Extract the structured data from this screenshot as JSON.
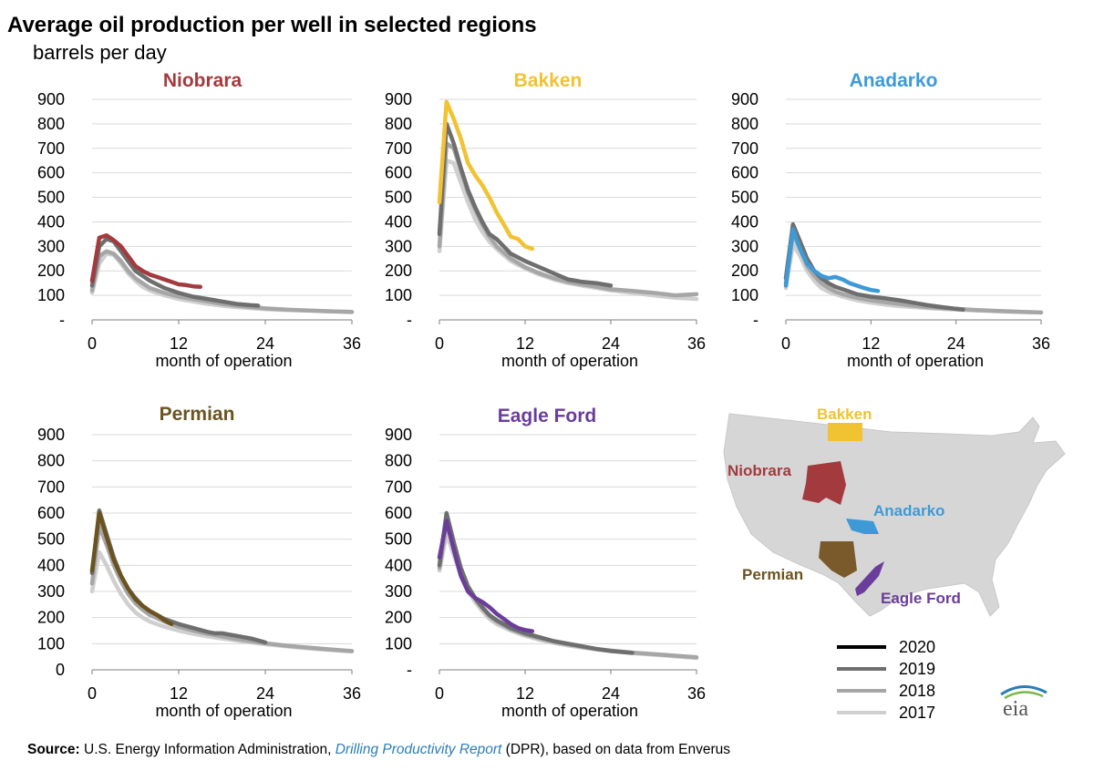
{
  "title": "Average oil production per well in selected regions",
  "subtitle": "barrels per day",
  "source": {
    "label": "Source:",
    "text_before": "U.S. Energy Information Administration,",
    "link": "Drilling Productivity Report",
    "text_after": "(DPR), based on data from Enverus"
  },
  "legend": [
    {
      "label": "2020",
      "color": "#000000"
    },
    {
      "label": "2019",
      "color": "#6e6e6e"
    },
    {
      "label": "2018",
      "color": "#a6a6a6"
    },
    {
      "label": "2017",
      "color": "#cfcfcf"
    }
  ],
  "map": {
    "labels": [
      {
        "text": "Bakken",
        "color": "#f1c232"
      },
      {
        "text": "Niobrara",
        "color": "#a33a3e"
      },
      {
        "text": "Anadarko",
        "color": "#3d9ad6"
      },
      {
        "text": "Permian",
        "color": "#6b5320"
      },
      {
        "text": "Eagle Ford",
        "color": "#6a3d9a"
      }
    ]
  },
  "logo_text": "eia",
  "chart_data": [
    {
      "type": "line",
      "title": "Niobrara",
      "title_color": "#a33a3e",
      "xlabel": "month of operation",
      "ylabel": "",
      "xticks": [
        "0",
        "12",
        "24",
        "36"
      ],
      "yticks": [
        "-",
        "100",
        "200",
        "300",
        "400",
        "500",
        "600",
        "700",
        "800",
        "900"
      ],
      "xlim": [
        0,
        36
      ],
      "ylim": [
        0,
        900
      ],
      "series": [
        {
          "name": "2017",
          "color": "#cfcfcf",
          "x": [
            0,
            1,
            2,
            3,
            4,
            5,
            6,
            7,
            8,
            10,
            12,
            14,
            16,
            18,
            20,
            22,
            24,
            27,
            30,
            33,
            36
          ],
          "values": [
            110,
            230,
            270,
            265,
            230,
            190,
            160,
            135,
            120,
            100,
            85,
            75,
            65,
            58,
            52,
            48,
            44,
            40,
            38,
            35,
            33
          ]
        },
        {
          "name": "2018",
          "color": "#a6a6a6",
          "x": [
            0,
            1,
            2,
            3,
            4,
            5,
            6,
            7,
            8,
            10,
            12,
            14,
            16,
            18,
            20,
            22,
            24,
            27,
            30,
            33,
            36
          ],
          "values": [
            120,
            260,
            280,
            270,
            240,
            200,
            170,
            150,
            130,
            110,
            95,
            85,
            75,
            65,
            58,
            52,
            47,
            42,
            38,
            35,
            32
          ]
        },
        {
          "name": "2019",
          "color": "#6e6e6e",
          "x": [
            0,
            1,
            2,
            3,
            4,
            5,
            6,
            7,
            8,
            10,
            12,
            14,
            16,
            18,
            20,
            22,
            23
          ],
          "values": [
            140,
            300,
            330,
            320,
            280,
            240,
            200,
            180,
            160,
            130,
            110,
            95,
            85,
            75,
            65,
            60,
            58
          ]
        },
        {
          "name": "2020",
          "color": "#a33a3e",
          "x": [
            0,
            1,
            2,
            3,
            4,
            5,
            6,
            7,
            8,
            9,
            10,
            11,
            12,
            13,
            14,
            15
          ],
          "values": [
            160,
            335,
            345,
            325,
            300,
            260,
            220,
            200,
            185,
            175,
            165,
            155,
            145,
            142,
            137,
            135
          ]
        }
      ]
    },
    {
      "type": "line",
      "title": "Bakken",
      "title_color": "#f1c232",
      "xlabel": "month of operation",
      "ylabel": "",
      "xticks": [
        "0",
        "12",
        "24",
        "36"
      ],
      "yticks": [
        "-",
        "100",
        "200",
        "300",
        "400",
        "500",
        "600",
        "700",
        "800",
        "900"
      ],
      "xlim": [
        0,
        36
      ],
      "ylim": [
        0,
        900
      ],
      "series": [
        {
          "name": "2017",
          "color": "#cfcfcf",
          "x": [
            0,
            1,
            2,
            3,
            4,
            5,
            6,
            7,
            8,
            10,
            12,
            14,
            16,
            18,
            20,
            22,
            24,
            27,
            30,
            33,
            36
          ],
          "values": [
            280,
            650,
            640,
            560,
            480,
            410,
            360,
            320,
            290,
            240,
            210,
            185,
            165,
            150,
            140,
            130,
            120,
            110,
            100,
            90,
            85
          ]
        },
        {
          "name": "2018",
          "color": "#a6a6a6",
          "x": [
            0,
            1,
            2,
            3,
            4,
            5,
            6,
            7,
            8,
            10,
            12,
            14,
            16,
            18,
            20,
            22,
            24,
            27,
            30,
            33,
            36
          ],
          "values": [
            300,
            720,
            700,
            610,
            520,
            450,
            390,
            340,
            300,
            250,
            215,
            190,
            170,
            155,
            145,
            135,
            125,
            118,
            110,
            100,
            105
          ]
        },
        {
          "name": "2019",
          "color": "#6e6e6e",
          "x": [
            0,
            1,
            2,
            3,
            4,
            5,
            6,
            7,
            8,
            10,
            12,
            14,
            16,
            18,
            20,
            22,
            24
          ],
          "values": [
            350,
            800,
            720,
            620,
            530,
            460,
            400,
            350,
            330,
            270,
            240,
            215,
            190,
            165,
            155,
            150,
            140
          ]
        },
        {
          "name": "2020",
          "color": "#f1c232",
          "x": [
            0,
            1,
            2,
            3,
            4,
            5,
            6,
            7,
            8,
            9,
            10,
            11,
            12,
            13
          ],
          "values": [
            480,
            890,
            820,
            740,
            640,
            590,
            550,
            500,
            440,
            390,
            340,
            330,
            300,
            290
          ]
        }
      ]
    },
    {
      "type": "line",
      "title": "Anadarko",
      "title_color": "#3d9ad6",
      "xlabel": "month of operation",
      "ylabel": "",
      "xticks": [
        "0",
        "12",
        "24",
        "36"
      ],
      "yticks": [
        "-",
        "100",
        "200",
        "300",
        "400",
        "500",
        "600",
        "700",
        "800",
        "900"
      ],
      "xlim": [
        0,
        36
      ],
      "ylim": [
        0,
        900
      ],
      "series": [
        {
          "name": "2017",
          "color": "#cfcfcf",
          "x": [
            0,
            1,
            2,
            3,
            4,
            5,
            6,
            7,
            8,
            10,
            12,
            14,
            16,
            18,
            20,
            22,
            24,
            27,
            30,
            33,
            36
          ],
          "values": [
            130,
            310,
            260,
            200,
            160,
            130,
            115,
            105,
            95,
            80,
            70,
            62,
            56,
            52,
            48,
            45,
            42,
            38,
            35,
            32,
            30
          ]
        },
        {
          "name": "2018",
          "color": "#a6a6a6",
          "x": [
            0,
            1,
            2,
            3,
            4,
            5,
            6,
            7,
            8,
            10,
            12,
            14,
            16,
            18,
            20,
            22,
            24,
            27,
            30,
            33,
            36
          ],
          "values": [
            150,
            350,
            290,
            220,
            180,
            150,
            130,
            115,
            105,
            90,
            80,
            72,
            65,
            58,
            52,
            48,
            45,
            40,
            36,
            33,
            30
          ]
        },
        {
          "name": "2019",
          "color": "#6e6e6e",
          "x": [
            0,
            1,
            2,
            3,
            4,
            5,
            6,
            7,
            8,
            10,
            12,
            14,
            16,
            18,
            20,
            22,
            24,
            25
          ],
          "values": [
            170,
            390,
            320,
            250,
            200,
            170,
            150,
            135,
            125,
            105,
            95,
            88,
            80,
            70,
            60,
            52,
            45,
            42
          ]
        },
        {
          "name": "2020",
          "color": "#3d9ad6",
          "x": [
            0,
            1,
            2,
            3,
            4,
            5,
            6,
            7,
            8,
            9,
            10,
            11,
            12,
            13
          ],
          "values": [
            140,
            370,
            290,
            230,
            200,
            180,
            170,
            175,
            165,
            150,
            140,
            130,
            122,
            118
          ]
        }
      ]
    },
    {
      "type": "line",
      "title": "Permian",
      "title_color": "#6b5320",
      "xlabel": "month of operation",
      "ylabel": "",
      "xticks": [
        "0",
        "12",
        "24",
        "36"
      ],
      "yticks": [
        "0",
        "100",
        "200",
        "300",
        "400",
        "500",
        "600",
        "700",
        "800",
        "900"
      ],
      "xlim": [
        0,
        36
      ],
      "ylim": [
        0,
        900
      ],
      "series": [
        {
          "name": "2017",
          "color": "#cfcfcf",
          "x": [
            0,
            1,
            2,
            3,
            4,
            5,
            6,
            7,
            8,
            10,
            12,
            14,
            16,
            18,
            20,
            22,
            24,
            27,
            30,
            33,
            36
          ],
          "values": [
            300,
            450,
            400,
            340,
            290,
            250,
            220,
            200,
            185,
            165,
            150,
            138,
            128,
            120,
            112,
            105,
            98,
            90,
            82,
            76,
            70
          ]
        },
        {
          "name": "2018",
          "color": "#a6a6a6",
          "x": [
            0,
            1,
            2,
            3,
            4,
            5,
            6,
            7,
            8,
            10,
            12,
            14,
            16,
            18,
            20,
            22,
            24,
            27,
            30,
            33,
            36
          ],
          "values": [
            330,
            550,
            480,
            400,
            340,
            290,
            255,
            230,
            210,
            185,
            165,
            150,
            138,
            128,
            118,
            110,
            102,
            92,
            85,
            78,
            72
          ]
        },
        {
          "name": "2019",
          "color": "#6e6e6e",
          "x": [
            0,
            1,
            2,
            3,
            4,
            5,
            6,
            7,
            8,
            10,
            12,
            14,
            16,
            17,
            18,
            19,
            20,
            22,
            24
          ],
          "values": [
            370,
            610,
            520,
            430,
            360,
            310,
            275,
            245,
            225,
            195,
            175,
            160,
            145,
            140,
            140,
            135,
            130,
            120,
            105
          ]
        },
        {
          "name": "2020",
          "color": "#6b5320",
          "x": [
            0,
            1,
            2,
            3,
            4,
            5,
            6,
            7,
            8,
            9,
            10,
            11
          ],
          "values": [
            380,
            600,
            510,
            420,
            360,
            310,
            270,
            245,
            225,
            210,
            190,
            175
          ]
        }
      ]
    },
    {
      "type": "line",
      "title": "Eagle Ford",
      "title_color": "#6a3d9a",
      "xlabel": "month of operation",
      "ylabel": "",
      "xticks": [
        "0",
        "12",
        "24",
        "36"
      ],
      "yticks": [
        "-",
        "100",
        "200",
        "300",
        "400",
        "500",
        "600",
        "700",
        "800",
        "900"
      ],
      "xlim": [
        0,
        36
      ],
      "ylim": [
        0,
        900
      ],
      "series": [
        {
          "name": "2017",
          "color": "#cfcfcf",
          "x": [
            0,
            1,
            2,
            3,
            4,
            5,
            6,
            7,
            8,
            10,
            12,
            14,
            16,
            18,
            20,
            22,
            24,
            27,
            30,
            33,
            36
          ],
          "values": [
            380,
            520,
            440,
            360,
            300,
            260,
            225,
            195,
            175,
            150,
            130,
            115,
            103,
            93,
            85,
            78,
            72,
            64,
            58,
            52,
            45
          ]
        },
        {
          "name": "2018",
          "color": "#a6a6a6",
          "x": [
            0,
            1,
            2,
            3,
            4,
            5,
            6,
            7,
            8,
            10,
            12,
            14,
            16,
            18,
            20,
            22,
            24,
            27,
            30,
            33,
            36
          ],
          "values": [
            390,
            560,
            470,
            380,
            315,
            270,
            235,
            205,
            185,
            155,
            135,
            120,
            108,
            97,
            88,
            80,
            74,
            66,
            60,
            54,
            48
          ]
        },
        {
          "name": "2019",
          "color": "#6e6e6e",
          "x": [
            0,
            1,
            2,
            3,
            4,
            5,
            6,
            7,
            8,
            10,
            12,
            14,
            16,
            18,
            20,
            22,
            24,
            27
          ],
          "values": [
            400,
            600,
            490,
            390,
            320,
            275,
            240,
            210,
            190,
            160,
            140,
            125,
            110,
            100,
            90,
            80,
            72,
            65
          ]
        },
        {
          "name": "2020",
          "color": "#6a3d9a",
          "x": [
            0,
            1,
            2,
            3,
            4,
            5,
            6,
            7,
            8,
            9,
            10,
            11,
            12,
            13
          ],
          "values": [
            430,
            570,
            460,
            360,
            300,
            275,
            260,
            240,
            215,
            195,
            175,
            160,
            152,
            148
          ]
        }
      ]
    }
  ]
}
